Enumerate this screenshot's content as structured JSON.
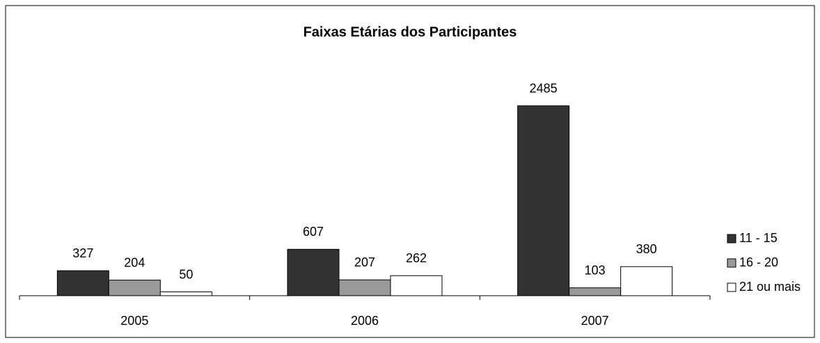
{
  "chart_data": {
    "type": "bar",
    "title": "Faixas Etárias dos Participantes",
    "categories": [
      "2005",
      "2006",
      "2007"
    ],
    "series": [
      {
        "name": "11 - 15",
        "color": "#333333",
        "values": [
          327,
          607,
          2485
        ]
      },
      {
        "name": "16 - 20",
        "color": "#999999",
        "values": [
          204,
          207,
          103
        ]
      },
      {
        "name": "21 ou mais",
        "color": "#ffffff",
        "values": [
          50,
          262,
          380
        ]
      }
    ],
    "legend": "right"
  }
}
